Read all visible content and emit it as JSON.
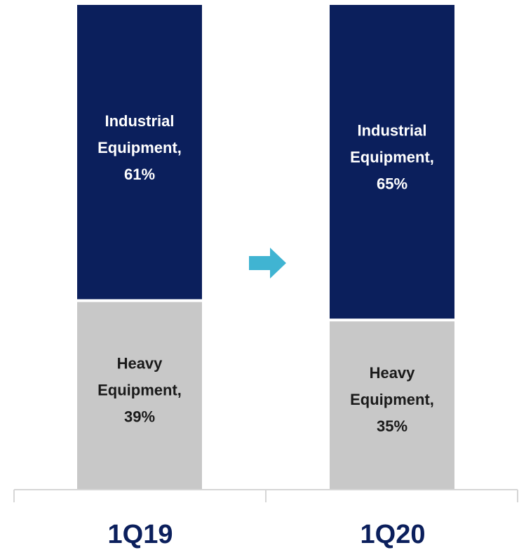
{
  "chart_data": {
    "type": "bar",
    "stacked": true,
    "percent": true,
    "categories": [
      "1Q19",
      "1Q20"
    ],
    "series": [
      {
        "name": "Heavy Equipment",
        "values": [
          39,
          35
        ],
        "color": "#c8c8c8",
        "text_color": "#1a1a1a",
        "labels": [
          [
            "Heavy",
            "Equipment,",
            "39%"
          ],
          [
            "Heavy",
            "Equipment,",
            "35%"
          ]
        ]
      },
      {
        "name": "Industrial Equipment",
        "values": [
          61,
          65
        ],
        "color": "#0b1f5c",
        "text_color": "#ffffff",
        "labels": [
          [
            "Industrial",
            "Equipment,",
            "61%"
          ],
          [
            "Industrial",
            "Equipment,",
            "65%"
          ]
        ]
      }
    ],
    "ylim": [
      0,
      100
    ],
    "grid": false,
    "legend": "none",
    "title": "",
    "xlabel": "",
    "ylabel": ""
  },
  "colors": {
    "arrow": "#40b4d2",
    "axis": "#d6d6d6",
    "category_label": "#0b1f5c"
  },
  "icons": {
    "transition": "right-arrow-icon"
  }
}
